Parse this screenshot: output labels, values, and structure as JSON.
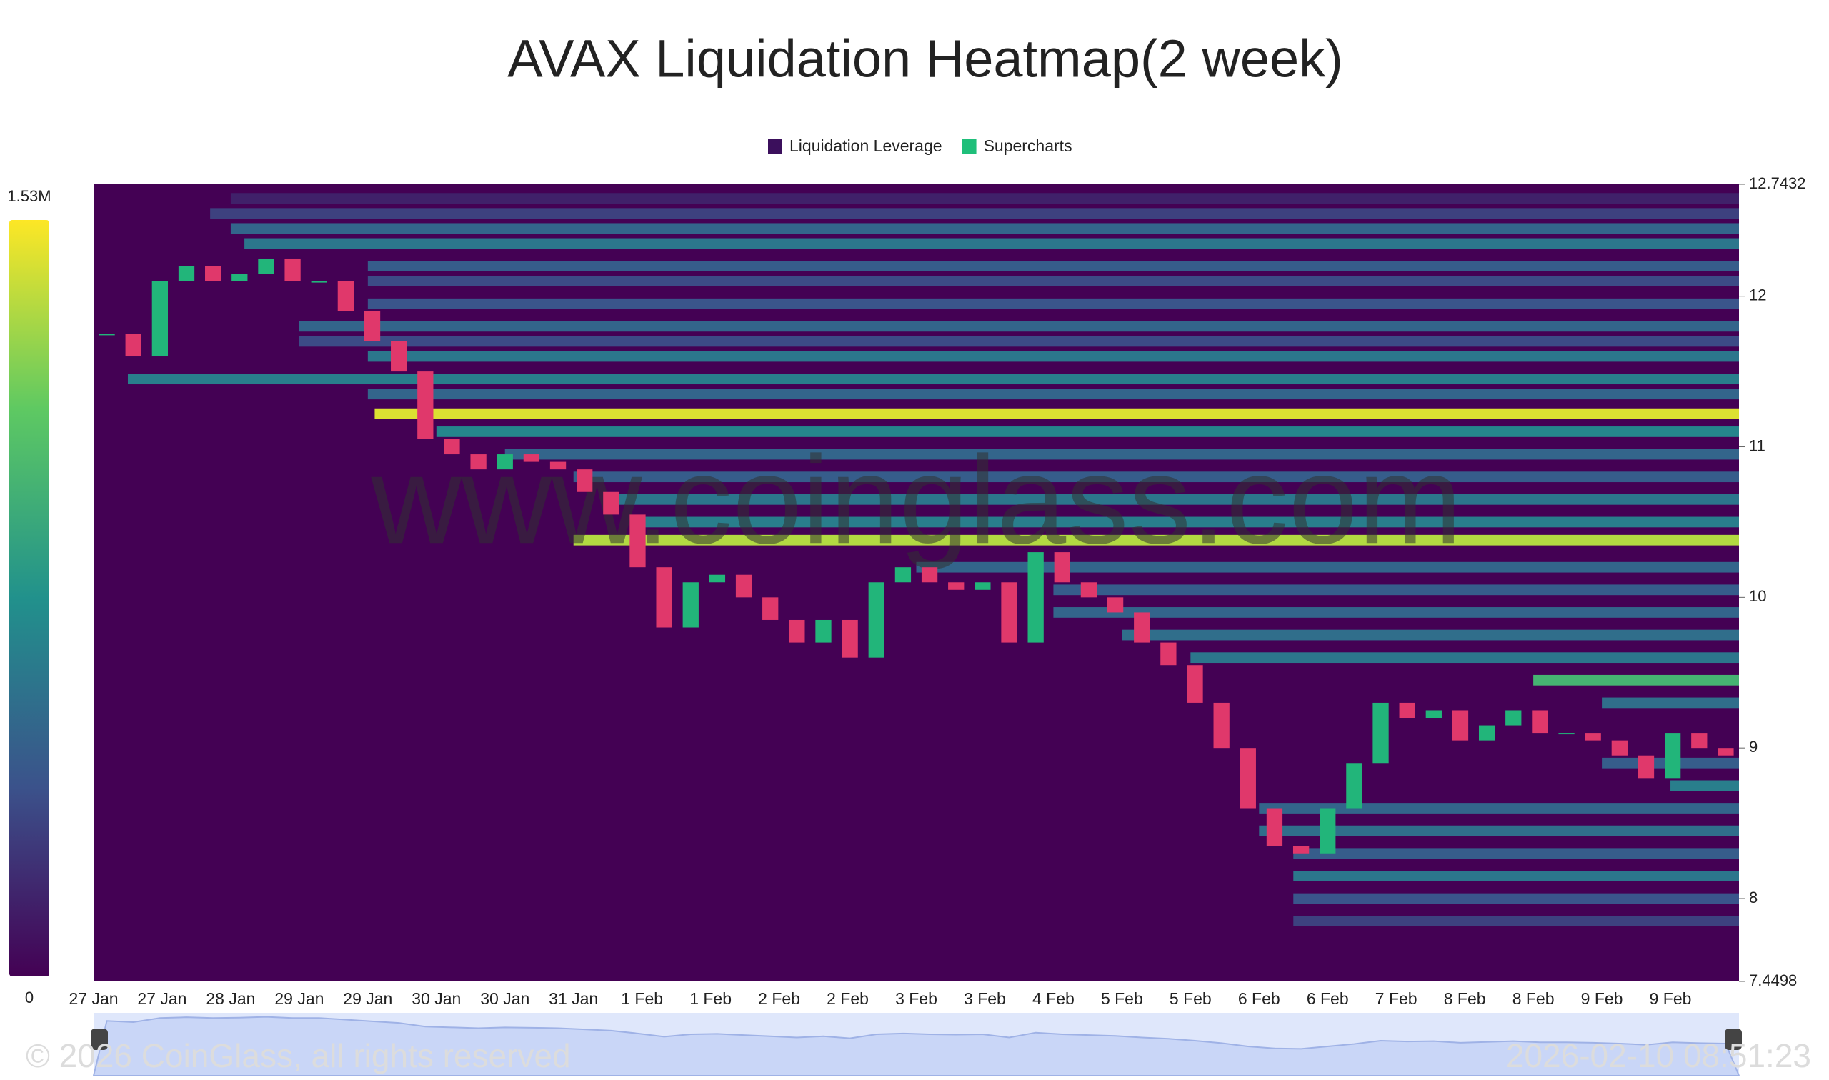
{
  "chart_data": {
    "type": "heatmap",
    "title": "AVAX Liquidation Heatmap(2 week)",
    "legend": [
      {
        "name": "Liquidation Leverage",
        "color": "#3b0f5c"
      },
      {
        "name": "Supercharts",
        "color": "#1fbf7a"
      }
    ],
    "categories": [
      "27 Jan",
      "27 Jan",
      "28 Jan",
      "29 Jan",
      "29 Jan",
      "30 Jan",
      "30 Jan",
      "31 Jan",
      "1 Feb",
      "1 Feb",
      "2 Feb",
      "2 Feb",
      "3 Feb",
      "3 Feb",
      "4 Feb",
      "5 Feb",
      "5 Feb",
      "6 Feb",
      "6 Feb",
      "7 Feb",
      "8 Feb",
      "8 Feb",
      "9 Feb",
      "9 Feb"
    ],
    "ylim": [
      7.4498,
      12.7432
    ],
    "yticks": [
      7.4498,
      8,
      9,
      10,
      11,
      12,
      12.7432
    ],
    "zlim": [
      0,
      1530000
    ],
    "zticks": [
      0,
      {
        "value": 1530000,
        "label": "1.53M"
      }
    ],
    "bands": {
      "price": [
        12.65,
        12.55,
        12.45,
        12.35,
        12.2,
        12.1,
        11.95,
        11.8,
        11.7,
        11.6,
        11.45,
        11.35,
        11.22,
        11.1,
        10.95,
        10.8,
        10.65,
        10.5,
        10.38,
        10.2,
        10.05,
        9.9,
        9.75,
        9.6,
        9.45,
        9.3,
        8.9,
        8.75,
        8.6,
        8.45,
        8.3,
        8.15,
        8.0,
        7.85
      ],
      "start": [
        2,
        1.7,
        2,
        2.2,
        4,
        4,
        4,
        3,
        3,
        4,
        0.5,
        4,
        4.1,
        5,
        6,
        7,
        7.5,
        8,
        7,
        12,
        14,
        14,
        15,
        16,
        21,
        22,
        22,
        23,
        17,
        17,
        17.5,
        17.5,
        17.5,
        17.5
      ],
      "values": [
        150000,
        300000,
        500000,
        600000,
        450000,
        350000,
        400000,
        500000,
        350000,
        600000,
        650000,
        500000,
        1450000,
        700000,
        500000,
        450000,
        600000,
        650000,
        1350000,
        500000,
        450000,
        500000,
        550000,
        600000,
        1000000,
        550000,
        450000,
        650000,
        500000,
        550000,
        450000,
        600000,
        400000,
        300000
      ]
    },
    "price": {
      "values": [
        11.75,
        11.6,
        12.1,
        12.2,
        12.1,
        12.15,
        12.25,
        12.1,
        12.1,
        11.9,
        11.7,
        11.5,
        11.05,
        10.95,
        10.85,
        10.95,
        10.9,
        10.85,
        10.7,
        10.55,
        10.2,
        9.8,
        10.1,
        10.15,
        10.0,
        9.85,
        9.7,
        9.85,
        9.6,
        10.1,
        10.2,
        10.1,
        10.05,
        10.1,
        9.7,
        10.3,
        10.1,
        10.0,
        9.9,
        9.7,
        9.55,
        9.3,
        9.0,
        8.6,
        8.35,
        8.3,
        8.6,
        8.9,
        9.3,
        9.2,
        9.25,
        9.05,
        9.15,
        9.25,
        9.1,
        9.1,
        9.05,
        8.95,
        8.8,
        9.1,
        9.0,
        8.95
      ]
    },
    "watermark": "www.coinglass.com",
    "copyright": "© 2026 CoinGlass, all rights reserved",
    "timestamp": "2026-02-10 08:51:23"
  }
}
